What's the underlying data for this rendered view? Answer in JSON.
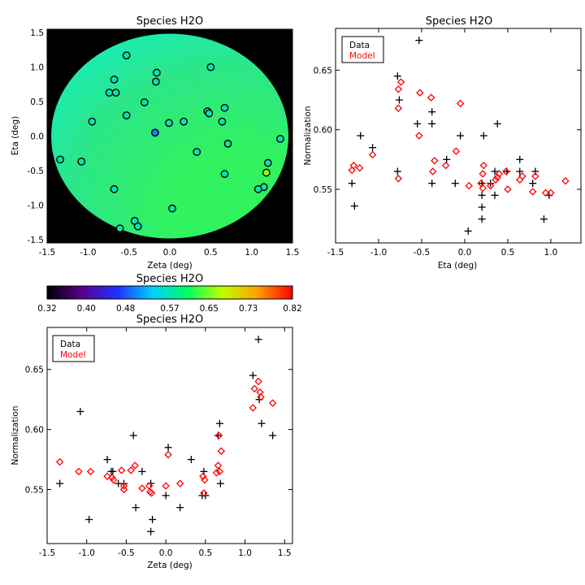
{
  "chart_data": [
    {
      "id": "map",
      "type": "scatter",
      "title": "Species H2O",
      "xlabel": "Zeta (deg)",
      "ylabel": "Eta (deg)",
      "xlim": [
        -1.5,
        1.5
      ],
      "ylim": [
        -1.55,
        1.55
      ],
      "xticks": [
        -1.5,
        -1.0,
        -0.5,
        0.0,
        0.5,
        1.0,
        1.5
      ],
      "xtick_labels": [
        "-1.5",
        "-1.0",
        "-0.5",
        "0.0",
        "0.5",
        "1.0",
        "1.5"
      ],
      "yticks": [
        -1.5,
        -1.0,
        -0.5,
        0.0,
        0.5,
        1.0,
        1.5
      ],
      "ytick_labels": [
        "-1.5",
        "-1.0",
        "-0.5",
        "0.0",
        "0.5",
        "1.0",
        "1.5"
      ],
      "field_radius_deg": 1.45,
      "field_color_low": "#31f25f",
      "field_color_mid": "#2ce689",
      "field_color_high": "#13eebf",
      "background_color": "#000000",
      "points": [
        {
          "x": -0.53,
          "y": 1.17,
          "v": 0.57
        },
        {
          "x": -0.16,
          "y": 0.92,
          "v": 0.57
        },
        {
          "x": 0.5,
          "y": 1.0,
          "v": 0.57
        },
        {
          "x": -0.68,
          "y": 0.82,
          "v": 0.57
        },
        {
          "x": -0.17,
          "y": 0.79,
          "v": 0.57
        },
        {
          "x": -0.74,
          "y": 0.63,
          "v": 0.57
        },
        {
          "x": -0.66,
          "y": 0.63,
          "v": 0.57
        },
        {
          "x": -0.31,
          "y": 0.49,
          "v": 0.57
        },
        {
          "x": 0.67,
          "y": 0.41,
          "v": 0.57
        },
        {
          "x": 0.46,
          "y": 0.36,
          "v": 0.57
        },
        {
          "x": 0.48,
          "y": 0.33,
          "v": 0.57
        },
        {
          "x": -0.53,
          "y": 0.3,
          "v": 0.57
        },
        {
          "x": -0.95,
          "y": 0.21,
          "v": 0.57
        },
        {
          "x": 0.17,
          "y": 0.21,
          "v": 0.57
        },
        {
          "x": 0.64,
          "y": 0.21,
          "v": 0.57
        },
        {
          "x": -0.01,
          "y": 0.19,
          "v": 0.57
        },
        {
          "x": -0.18,
          "y": 0.05,
          "v": 0.5
        },
        {
          "x": 1.35,
          "y": -0.04,
          "v": 0.57
        },
        {
          "x": 0.71,
          "y": -0.11,
          "v": 0.57
        },
        {
          "x": 0.33,
          "y": -0.23,
          "v": 0.57
        },
        {
          "x": -1.34,
          "y": -0.34,
          "v": 0.57
        },
        {
          "x": -1.08,
          "y": -0.37,
          "v": 0.57
        },
        {
          "x": 1.2,
          "y": -0.39,
          "v": 0.57
        },
        {
          "x": 1.18,
          "y": -0.53,
          "v": 0.66
        },
        {
          "x": 0.67,
          "y": -0.55,
          "v": 0.57
        },
        {
          "x": 1.15,
          "y": -0.74,
          "v": 0.57
        },
        {
          "x": 1.08,
          "y": -0.77,
          "v": 0.57
        },
        {
          "x": -0.68,
          "y": -0.77,
          "v": 0.57
        },
        {
          "x": 0.03,
          "y": -1.05,
          "v": 0.57
        },
        {
          "x": -0.43,
          "y": -1.23,
          "v": 0.57
        },
        {
          "x": -0.39,
          "y": -1.31,
          "v": 0.57
        },
        {
          "x": -0.61,
          "y": -1.34,
          "v": 0.57
        }
      ]
    },
    {
      "id": "eta",
      "type": "scatter",
      "title": "Species H2O",
      "xlabel": "Eta (deg)",
      "ylabel": "Normalization",
      "xlim": [
        -1.5,
        1.35
      ],
      "ylim": [
        0.505,
        0.685
      ],
      "xticks": [
        -1.5,
        -1.0,
        -0.5,
        0.0,
        0.5,
        1.0
      ],
      "xtick_labels": [
        "-1.5",
        "-1.0",
        "-0.5",
        "0.0",
        "0.5",
        "1.0"
      ],
      "yticks": [
        0.55,
        0.6,
        0.65
      ],
      "ytick_labels": [
        "0.55",
        "0.60",
        "0.65"
      ],
      "legend": {
        "position": "top-left",
        "entries": [
          {
            "label": "Data",
            "color": "#000000"
          },
          {
            "label": "Model",
            "color": "#ff0000"
          }
        ]
      },
      "series": [
        {
          "name": "Data",
          "marker": "plus",
          "color": "#000000",
          "points": [
            [
              -0.53,
              0.675
            ],
            [
              -0.78,
              0.645
            ],
            [
              -0.76,
              0.625
            ],
            [
              -0.55,
              0.605
            ],
            [
              -0.38,
              0.605
            ],
            [
              -1.21,
              0.595
            ],
            [
              -0.05,
              0.595
            ],
            [
              0.22,
              0.595
            ],
            [
              0.38,
              0.605
            ],
            [
              -1.07,
              0.585
            ],
            [
              -0.38,
              0.615
            ],
            [
              -0.21,
              0.575
            ],
            [
              0.64,
              0.575
            ],
            [
              -0.78,
              0.565
            ],
            [
              0.35,
              0.565
            ],
            [
              0.49,
              0.565
            ],
            [
              0.64,
              0.565
            ],
            [
              0.82,
              0.565
            ],
            [
              -1.31,
              0.555
            ],
            [
              -0.38,
              0.555
            ],
            [
              -0.11,
              0.555
            ],
            [
              0.2,
              0.555
            ],
            [
              0.3,
              0.555
            ],
            [
              0.79,
              0.555
            ],
            [
              0.2,
              0.545
            ],
            [
              0.35,
              0.545
            ],
            [
              0.98,
              0.545
            ],
            [
              0.2,
              0.535
            ],
            [
              0.2,
              0.525
            ],
            [
              0.92,
              0.525
            ],
            [
              -1.28,
              0.536
            ],
            [
              0.04,
              0.515
            ]
          ]
        },
        {
          "name": "Model",
          "marker": "diamond",
          "color": "#ff0000",
          "points": [
            [
              -0.74,
              0.64
            ],
            [
              -0.77,
              0.634
            ],
            [
              -0.52,
              0.631
            ],
            [
              -0.39,
              0.627
            ],
            [
              -0.05,
              0.622
            ],
            [
              -0.77,
              0.618
            ],
            [
              -0.53,
              0.595
            ],
            [
              -0.1,
              0.582
            ],
            [
              -0.35,
              0.574
            ],
            [
              -0.22,
              0.57
            ],
            [
              -1.29,
              0.57
            ],
            [
              0.22,
              0.57
            ],
            [
              -1.31,
              0.566
            ],
            [
              -1.22,
              0.568
            ],
            [
              -0.37,
              0.565
            ],
            [
              0.4,
              0.563
            ],
            [
              0.21,
              0.563
            ],
            [
              0.48,
              0.565
            ],
            [
              0.38,
              0.56
            ],
            [
              -1.07,
              0.579
            ],
            [
              -0.77,
              0.559
            ],
            [
              0.36,
              0.558
            ],
            [
              0.19,
              0.555
            ],
            [
              0.3,
              0.553
            ],
            [
              0.64,
              0.558
            ],
            [
              0.67,
              0.561
            ],
            [
              0.82,
              0.561
            ],
            [
              0.5,
              0.55
            ],
            [
              0.05,
              0.553
            ],
            [
              0.21,
              0.551
            ],
            [
              0.79,
              0.548
            ],
            [
              0.94,
              0.547
            ],
            [
              1.0,
              0.547
            ],
            [
              1.17,
              0.557
            ]
          ]
        }
      ]
    },
    {
      "id": "zeta",
      "type": "scatter",
      "title": "Species H2O",
      "xlabel": "Zeta (deg)",
      "ylabel": "Normalization",
      "xlim": [
        -1.5,
        1.6
      ],
      "ylim": [
        0.505,
        0.685
      ],
      "xticks": [
        -1.5,
        -1.0,
        -0.5,
        0.0,
        0.5,
        1.0,
        1.5
      ],
      "xtick_labels": [
        "-1.5",
        "-1.0",
        "-0.5",
        "0.0",
        "0.5",
        "1.0",
        "1.5"
      ],
      "yticks": [
        0.55,
        0.6,
        0.65
      ],
      "ytick_labels": [
        "0.55",
        "0.60",
        "0.65"
      ],
      "legend": {
        "position": "top-left",
        "entries": [
          {
            "label": "Data",
            "color": "#000000"
          },
          {
            "label": "Model",
            "color": "#ff0000"
          }
        ]
      },
      "series": [
        {
          "name": "Data",
          "marker": "plus",
          "color": "#000000",
          "points": [
            [
              1.17,
              0.675
            ],
            [
              1.1,
              0.645
            ],
            [
              1.18,
              0.625
            ],
            [
              0.68,
              0.605
            ],
            [
              1.21,
              0.605
            ],
            [
              -1.08,
              0.615
            ],
            [
              -0.41,
              0.595
            ],
            [
              0.66,
              0.595
            ],
            [
              1.35,
              0.595
            ],
            [
              0.03,
              0.585
            ],
            [
              -0.74,
              0.575
            ],
            [
              0.32,
              0.575
            ],
            [
              -0.69,
              0.565
            ],
            [
              -0.67,
              0.565
            ],
            [
              -0.3,
              0.565
            ],
            [
              0.48,
              0.565
            ],
            [
              -1.34,
              0.555
            ],
            [
              -0.6,
              0.555
            ],
            [
              -0.53,
              0.555
            ],
            [
              -0.19,
              0.555
            ],
            [
              0.69,
              0.555
            ],
            [
              0.0,
              0.545
            ],
            [
              0.46,
              0.545
            ],
            [
              0.5,
              0.545
            ],
            [
              -0.97,
              0.525
            ],
            [
              -0.38,
              0.535
            ],
            [
              0.18,
              0.535
            ],
            [
              -0.17,
              0.525
            ],
            [
              -0.19,
              0.515
            ]
          ]
        },
        {
          "name": "Model",
          "marker": "diamond",
          "color": "#ff0000",
          "points": [
            [
              1.17,
              0.64
            ],
            [
              1.12,
              0.634
            ],
            [
              1.19,
              0.631
            ],
            [
              1.2,
              0.627
            ],
            [
              1.35,
              0.622
            ],
            [
              1.1,
              0.618
            ],
            [
              0.67,
              0.595
            ],
            [
              0.7,
              0.582
            ],
            [
              0.66,
              0.57
            ],
            [
              0.68,
              0.565
            ],
            [
              0.64,
              0.564
            ],
            [
              0.03,
              0.579
            ],
            [
              -1.34,
              0.573
            ],
            [
              -0.39,
              0.57
            ],
            [
              -0.44,
              0.566
            ],
            [
              -0.56,
              0.566
            ],
            [
              -1.1,
              0.565
            ],
            [
              -0.95,
              0.565
            ],
            [
              -0.74,
              0.561
            ],
            [
              -0.68,
              0.56
            ],
            [
              -0.66,
              0.558
            ],
            [
              0.47,
              0.561
            ],
            [
              -0.53,
              0.553
            ],
            [
              -0.21,
              0.553
            ],
            [
              0.0,
              0.553
            ],
            [
              0.18,
              0.555
            ],
            [
              0.49,
              0.558
            ],
            [
              -0.53,
              0.55
            ],
            [
              -0.3,
              0.551
            ],
            [
              -0.2,
              0.548
            ],
            [
              -0.18,
              0.547
            ],
            [
              0.48,
              0.547
            ]
          ]
        }
      ]
    },
    {
      "id": "colorbar",
      "type": "heatmap",
      "title": "Species H2O",
      "vmin": 0.32,
      "vmax": 0.82,
      "tick_values": [
        0.32,
        0.4,
        0.48,
        0.57,
        0.65,
        0.73,
        0.82
      ],
      "tick_labels": [
        "0.32",
        "0.40",
        "0.48",
        "0.57",
        "0.65",
        "0.73",
        "0.82"
      ],
      "colormap_stops": [
        "#000000",
        "#5a0090",
        "#2030ff",
        "#00d0ff",
        "#00ff60",
        "#c0ff00",
        "#ffa000",
        "#ff0000"
      ]
    }
  ]
}
